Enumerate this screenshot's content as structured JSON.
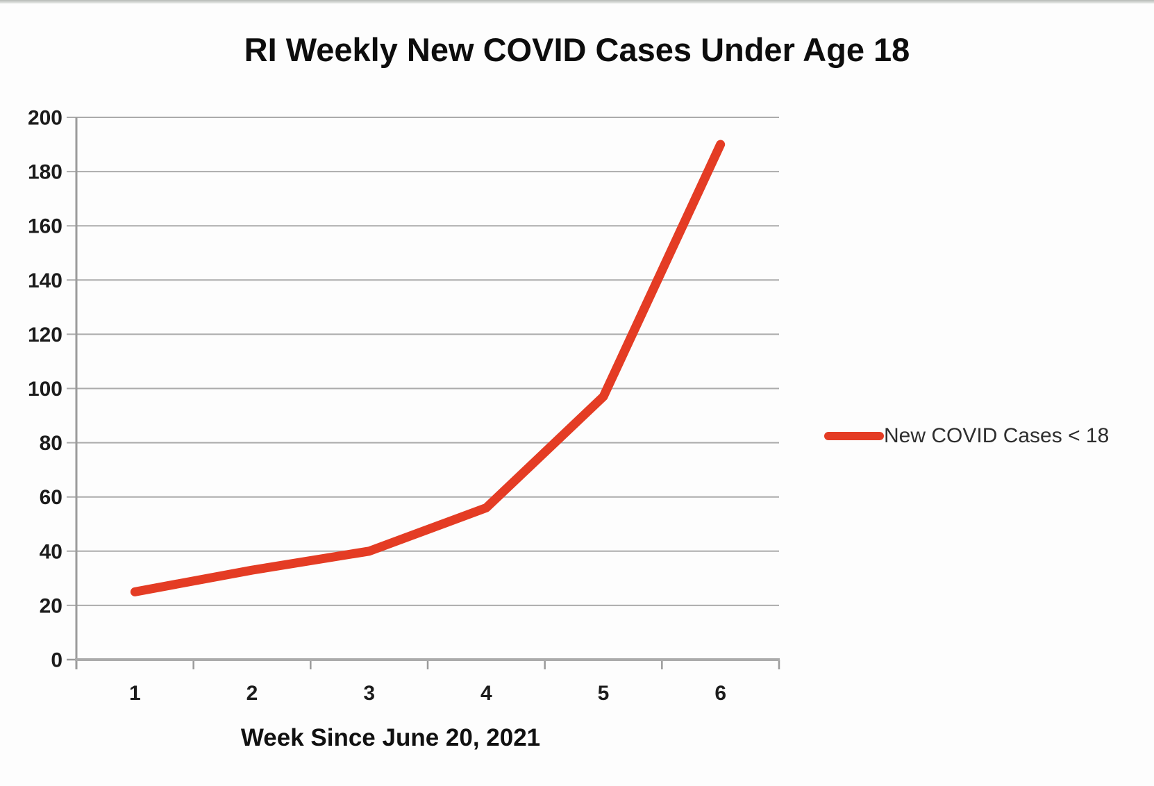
{
  "chart_data": {
    "type": "line",
    "title": "RI Weekly New COVID Cases Under Age 18",
    "xlabel": "Week Since June 20, 2021",
    "ylabel": "",
    "categories": [
      "1",
      "2",
      "3",
      "4",
      "5",
      "6"
    ],
    "series": [
      {
        "name": "New COVID Cases < 18",
        "values": [
          25,
          33,
          40,
          56,
          97,
          190
        ],
        "color": "#e43c24"
      }
    ],
    "ylim": [
      0,
      200
    ],
    "ytick_step": 20,
    "grid": "horizontal-only",
    "legend_position": "right-middle",
    "line_style": "thick-rounded"
  },
  "colors": {
    "line_red": "#e43c24",
    "gridline": "#ababab",
    "axis": "#9b9b9b",
    "text": "#1c1c1c",
    "background": "#fdfdfd"
  }
}
